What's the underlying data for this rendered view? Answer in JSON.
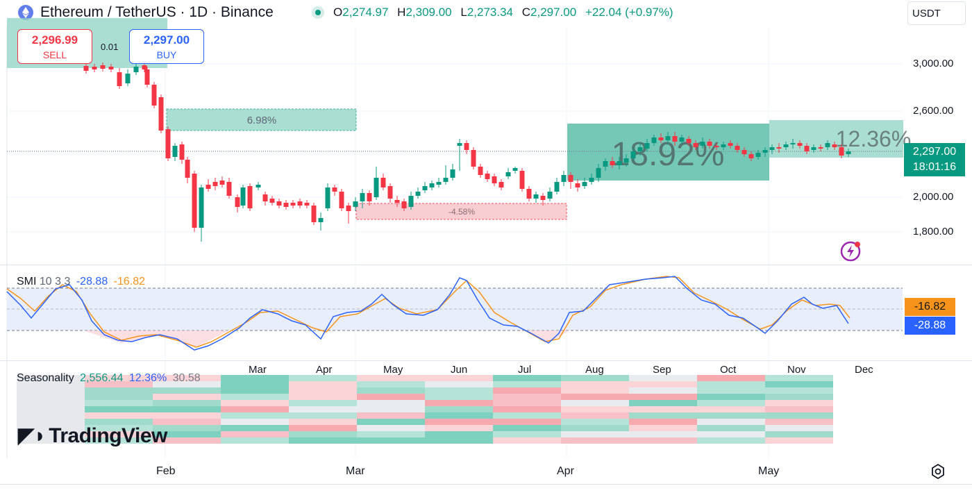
{
  "header": {
    "symbol": "Ethereum / TetherUS · 1D · Binance",
    "ohlc": [
      {
        "k": "O",
        "v": "2,274.97"
      },
      {
        "k": "H",
        "v": "2,309.00"
      },
      {
        "k": "L",
        "v": "2,273.34"
      },
      {
        "k": "C",
        "v": "2,297.00"
      }
    ],
    "change": "+22.04 (+0.97%)",
    "currency": "USDT"
  },
  "trade": {
    "sell_price": "2,296.99",
    "sell_label": "SELL",
    "buy_price": "2,297.00",
    "buy_label": "BUY",
    "qty": "0.01"
  },
  "price_axis": [
    "3,000.00",
    "2,600.00",
    "2,000.00",
    "1,800.00"
  ],
  "price_tag": {
    "price": "2,297.00",
    "countdown": "18:01:16"
  },
  "ranges": [
    {
      "label": "6.98%",
      "kind": "up"
    },
    {
      "label": "-4.58%",
      "kind": "down"
    },
    {
      "label": "18.92%",
      "kind": "up"
    },
    {
      "label": "12.36%",
      "kind": "up"
    }
  ],
  "smi": {
    "name": "SMI",
    "params": "10 3 3",
    "v1": "-28.88",
    "v2": "-16.82"
  },
  "seasonality": {
    "name": "Seasonality",
    "v1": "2,556.44",
    "v2": "12.36%",
    "v3": "30.58",
    "months": [
      "Mar",
      "Apr",
      "May",
      "Jun",
      "Jul",
      "Aug",
      "Sep",
      "Oct",
      "Nov",
      "Dec"
    ]
  },
  "months": [
    "Feb",
    "Mar",
    "Apr",
    "May"
  ],
  "logo": "TradingView",
  "colors": {
    "up": "#089981",
    "down": "#f23645",
    "smi": "#2962ff",
    "signal": "#f7931a"
  },
  "icons": [
    "ethereum-icon",
    "status-dot-icon",
    "flash-icon",
    "settings-icon"
  ]
}
